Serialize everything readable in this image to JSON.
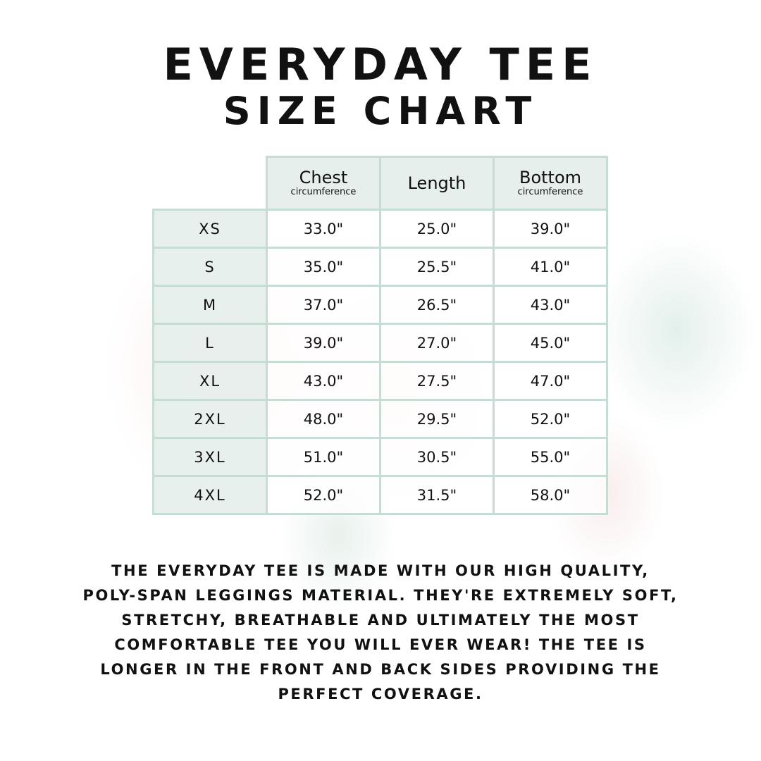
{
  "title": {
    "line1": "EVERYDAY TEE",
    "line2": "SIZE CHART"
  },
  "table": {
    "headers": [
      {
        "main": "Chest",
        "sub": "circumference"
      },
      {
        "main": "Length",
        "sub": ""
      },
      {
        "main": "Bottom",
        "sub": "circumference"
      }
    ],
    "rows": [
      {
        "size": "XS",
        "values": [
          "33.0\"",
          "25.0\"",
          "39.0\""
        ]
      },
      {
        "size": "S",
        "values": [
          "35.0\"",
          "25.5\"",
          "41.0\""
        ]
      },
      {
        "size": "M",
        "values": [
          "37.0\"",
          "26.5\"",
          "43.0\""
        ]
      },
      {
        "size": "L",
        "values": [
          "39.0\"",
          "27.0\"",
          "45.0\""
        ]
      },
      {
        "size": "XL",
        "values": [
          "43.0\"",
          "27.5\"",
          "47.0\""
        ]
      },
      {
        "size": "2XL",
        "values": [
          "48.0\"",
          "29.5\"",
          "52.0\""
        ]
      },
      {
        "size": "3XL",
        "values": [
          "51.0\"",
          "30.5\"",
          "55.0\""
        ]
      },
      {
        "size": "4XL",
        "values": [
          "52.0\"",
          "31.5\"",
          "58.0\""
        ]
      }
    ]
  },
  "description": {
    "lines": [
      "THE EVERYDAY TEE IS MADE WITH OUR HIGH QUALITY,",
      "POLY-SPAN LEGGINGS MATERIAL. THEY'RE EXTREMELY SOFT,",
      "STRETCHY, BREATHABLE AND ULTIMATELY THE MOST",
      "COMFORTABLE TEE YOU WILL EVER WEAR! THE TEE IS",
      "LONGER IN THE FRONT AND BACK SIDES PROVIDING THE",
      "PERFECT COVERAGE."
    ]
  },
  "colors": {
    "header_bg": "#e6efeb",
    "border": "#c7dcd3",
    "text": "#111111"
  }
}
